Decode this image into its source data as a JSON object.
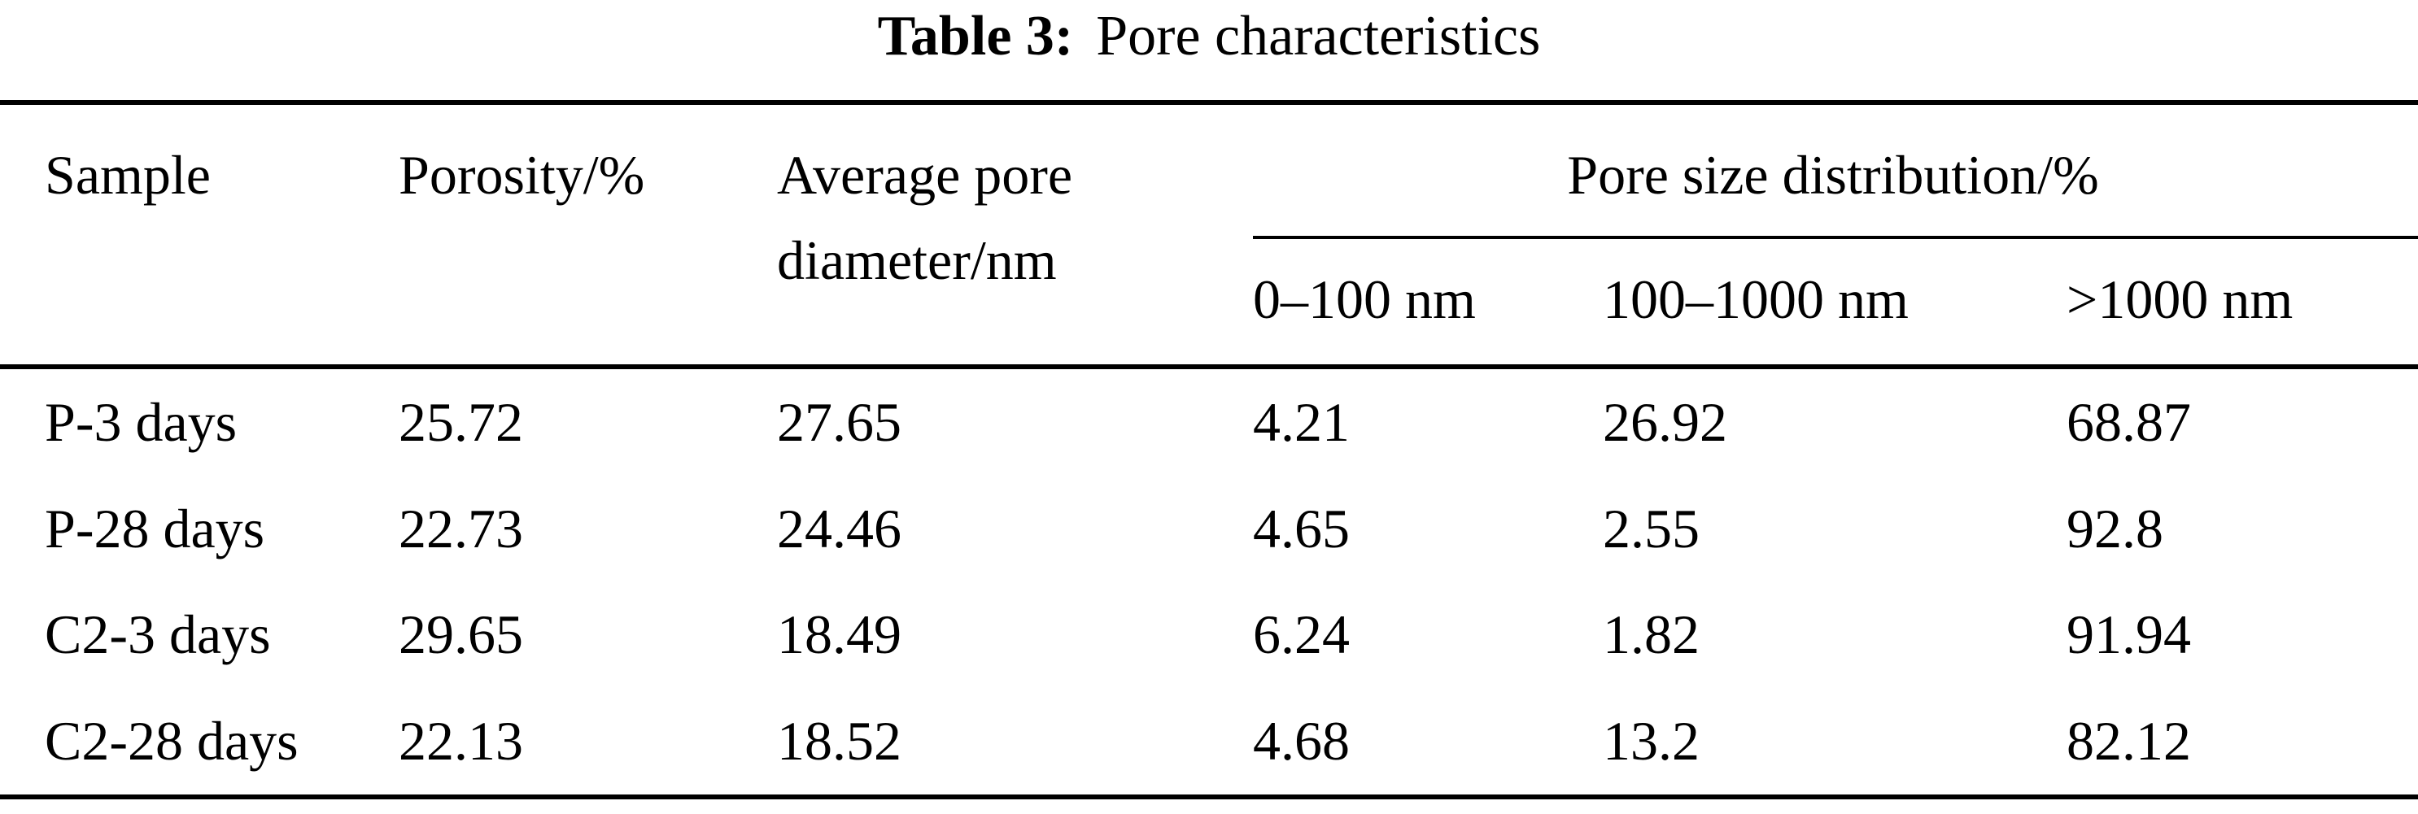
{
  "title": {
    "label": "Table 3:",
    "text": "Pore characteristics"
  },
  "table": {
    "headers": {
      "sample": "Sample",
      "porosity": "Porosity/%",
      "avg_pore_diameter": "Average pore diameter/nm",
      "pore_size_distribution": "Pore size distribution/%",
      "range_0_100": "0–100 nm",
      "range_100_1000": "100–1000 nm",
      "range_gt_1000": ">1000 nm"
    },
    "rows": [
      {
        "sample": "P-3 days",
        "porosity": "25.72",
        "avg_pore_diameter": "27.65",
        "dist_0_100": "4.21",
        "dist_100_1000": "26.92",
        "dist_gt_1000": "68.87"
      },
      {
        "sample": "P-28 days",
        "porosity": "22.73",
        "avg_pore_diameter": "24.46",
        "dist_0_100": "4.65",
        "dist_100_1000": "2.55",
        "dist_gt_1000": "92.8"
      },
      {
        "sample": "C2-3 days",
        "porosity": "29.65",
        "avg_pore_diameter": "18.49",
        "dist_0_100": "6.24",
        "dist_100_1000": "1.82",
        "dist_gt_1000": "91.94"
      },
      {
        "sample": "C2-28 days",
        "porosity": "22.13",
        "avg_pore_diameter": "18.52",
        "dist_0_100": "4.68",
        "dist_100_1000": "13.2",
        "dist_gt_1000": "82.12"
      }
    ]
  },
  "colors": {
    "text": "#000000",
    "background": "#ffffff",
    "rule": "#000000"
  }
}
